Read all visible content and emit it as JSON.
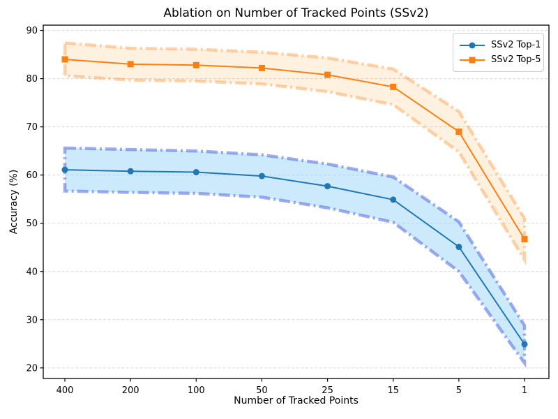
{
  "chart_data": {
    "type": "line",
    "title": "Ablation on Number of Tracked Points (SSv2)",
    "xlabel": "Number of Tracked Points",
    "ylabel": "Accuracy (%)",
    "categories": [
      "400",
      "200",
      "100",
      "50",
      "25",
      "15",
      "5",
      "1"
    ],
    "yticks": [
      20,
      30,
      40,
      50,
      60,
      70,
      80,
      90
    ],
    "ylim": [
      17.8,
      91.1
    ],
    "grid": "y-only, dashed, light gray",
    "legend_position": "upper right",
    "legend_border_color": "#cccccc",
    "series": [
      {
        "name": "SSv2 Top-1",
        "color": "#1f77b4",
        "marker": "circle",
        "values": [
          61.1,
          60.8,
          60.6,
          59.8,
          57.7,
          54.9,
          45.1,
          24.9
        ],
        "band_upper": [
          65.6,
          65.3,
          65.0,
          64.2,
          62.3,
          59.6,
          50.3,
          28.8
        ],
        "band_lower": [
          56.7,
          56.4,
          56.2,
          55.4,
          53.2,
          50.2,
          40.0,
          21.0
        ],
        "band_fill": "rgba(135,206,250,0.42)",
        "band_edge": "rgba(75,95,225,0.52)"
      },
      {
        "name": "SSv2 Top-5",
        "color": "#ff7f0e",
        "marker": "square",
        "values": [
          84.0,
          83.0,
          82.8,
          82.2,
          80.8,
          78.3,
          69.0,
          46.7
        ],
        "band_upper": [
          87.4,
          86.3,
          86.1,
          85.5,
          84.3,
          82.0,
          73.2,
          51.0
        ],
        "band_lower": [
          80.6,
          79.7,
          79.5,
          78.9,
          77.3,
          74.6,
          64.8,
          42.4
        ],
        "band_fill": "rgba(255,165,60,0.16)",
        "band_edge": "rgba(255,127,14,0.34)"
      }
    ],
    "gridline_color": "#d9d9d9",
    "axis_color": "#000000"
  }
}
